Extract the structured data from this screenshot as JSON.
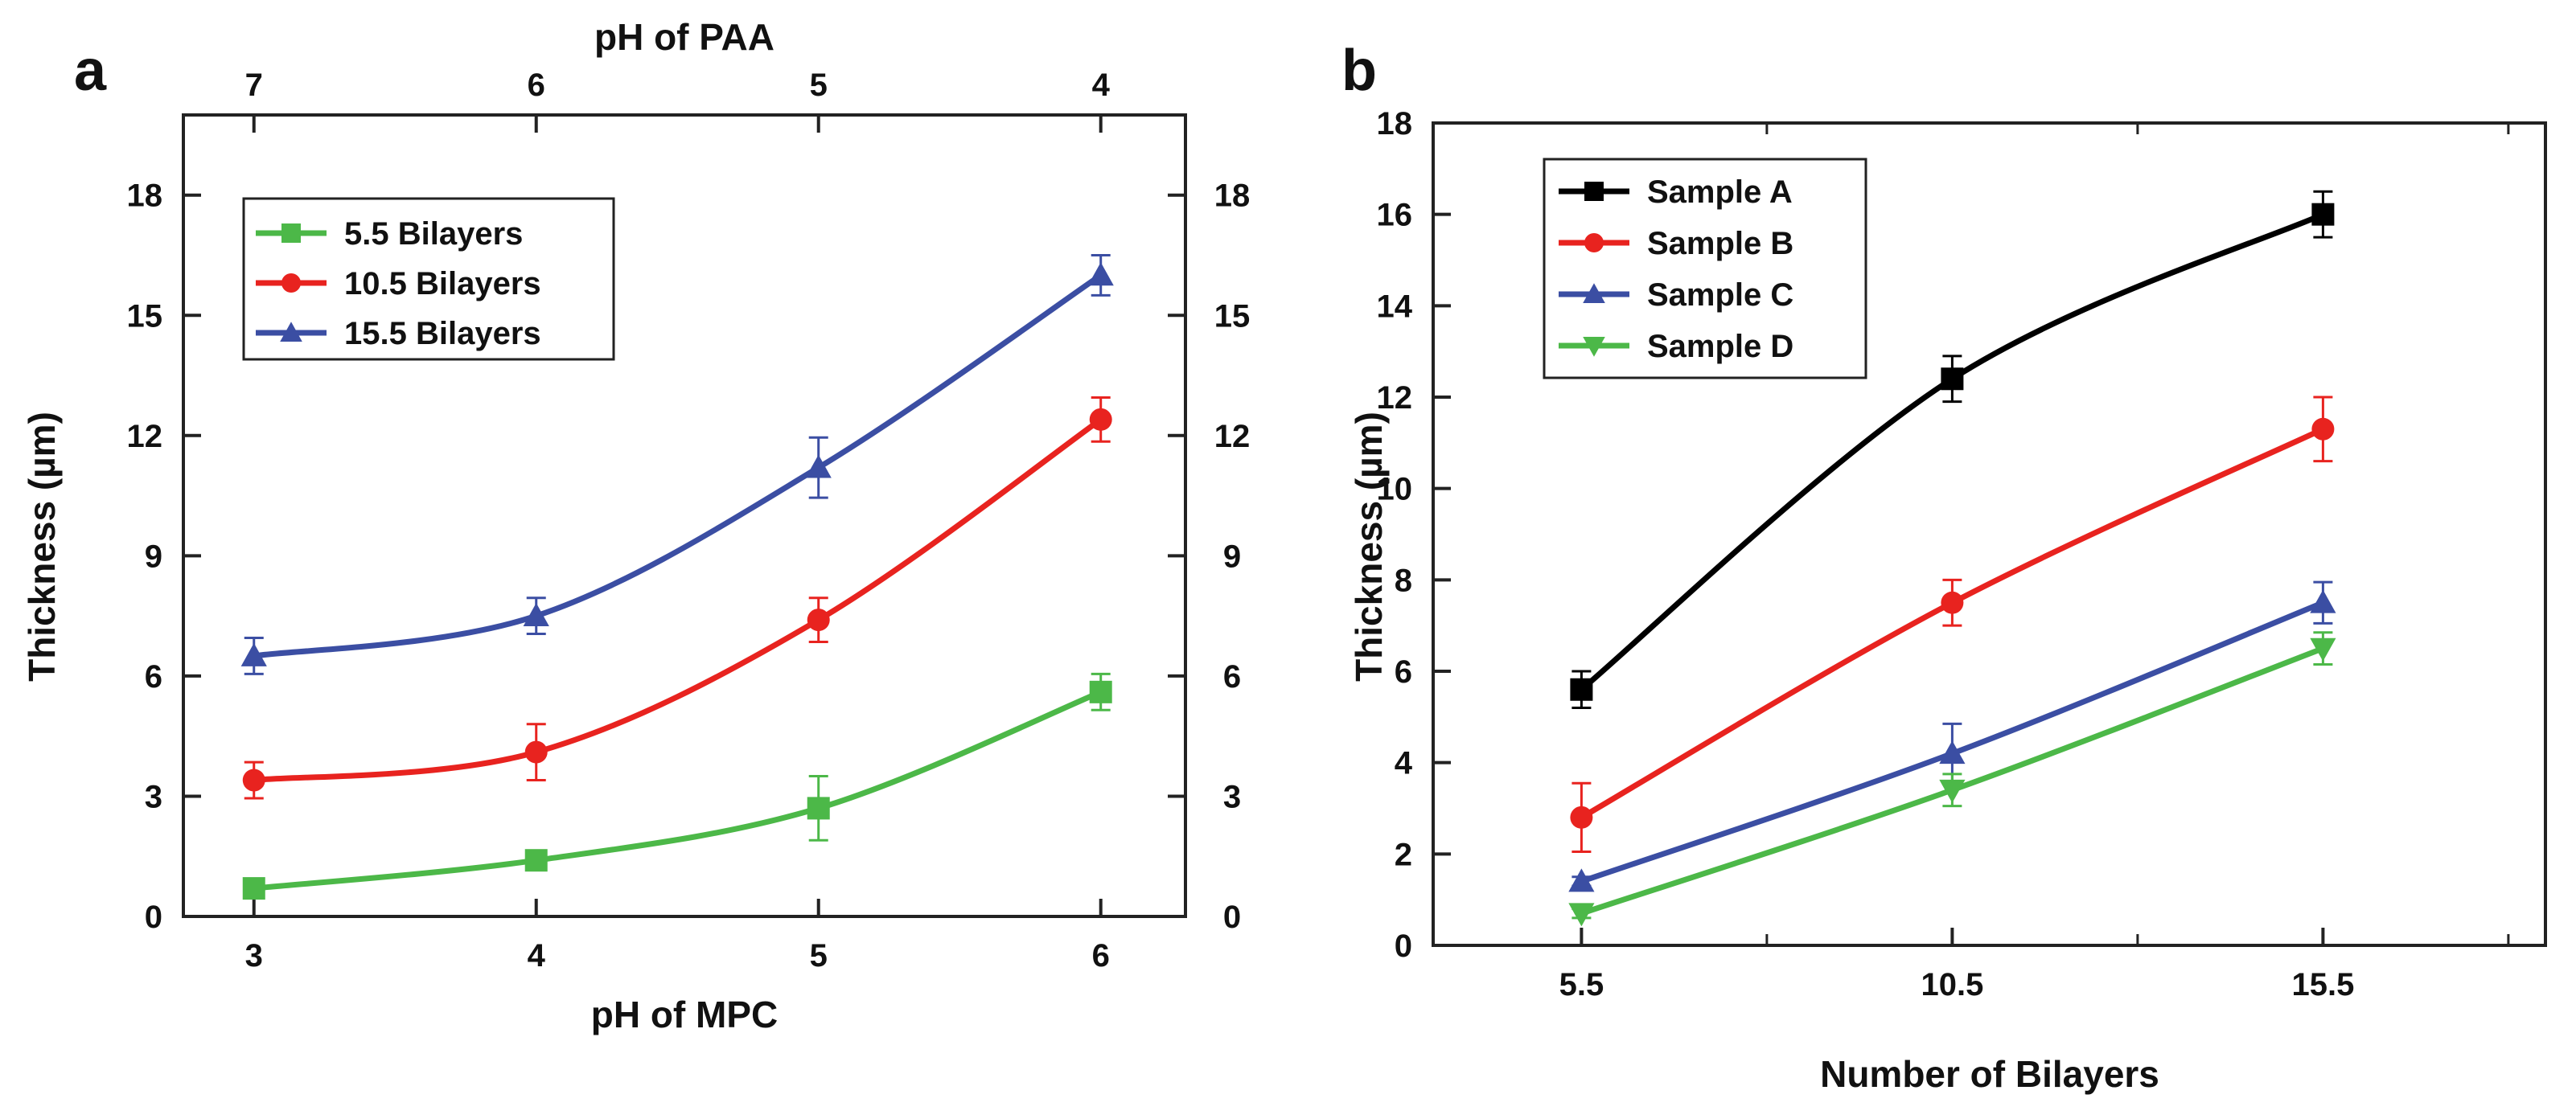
{
  "chart_data": [
    {
      "panel": "a",
      "type": "line",
      "xlabel": "pH of MPC",
      "x2label": "pH of PAA",
      "ylabel": "Thickness (µm)",
      "x": [
        3,
        4,
        5,
        6
      ],
      "x_ticks": [
        "3",
        "4",
        "5",
        "6"
      ],
      "x2_ticks": [
        "7",
        "6",
        "5",
        "4"
      ],
      "xlim": [
        2.75,
        6.3
      ],
      "ylim": [
        0,
        20
      ],
      "y_ticks": [
        0,
        3,
        6,
        9,
        12,
        15,
        18
      ],
      "legend_position": "top-left",
      "series": [
        {
          "name": "5.5 Bilayers",
          "color": "#4cb848",
          "marker": "square",
          "values": [
            0.7,
            1.4,
            2.7,
            5.6
          ],
          "errors": [
            0.1,
            0.15,
            0.8,
            0.45
          ]
        },
        {
          "name": "10.5 Bilayers",
          "color": "#e8231f",
          "marker": "circle",
          "values": [
            3.4,
            4.1,
            7.4,
            12.4
          ],
          "errors": [
            0.45,
            0.7,
            0.55,
            0.55
          ]
        },
        {
          "name": "15.5 Bilayers",
          "color": "#3b4ea3",
          "marker": "triangle-up",
          "values": [
            6.5,
            7.5,
            11.2,
            16.0
          ],
          "errors": [
            0.45,
            0.45,
            0.75,
            0.5
          ]
        }
      ]
    },
    {
      "panel": "b",
      "type": "line",
      "xlabel": "Number of Bilayers",
      "ylabel": "Thickness (µm)",
      "x": [
        5.5,
        10.5,
        15.5
      ],
      "x_ticks": [
        "5.5",
        "10.5",
        "15.5"
      ],
      "xlim": [
        3.5,
        18.5
      ],
      "ylim": [
        0,
        18
      ],
      "y_ticks": [
        0,
        2,
        4,
        6,
        8,
        10,
        12,
        14,
        16,
        18
      ],
      "legend_position": "top-left",
      "series": [
        {
          "name": "Sample A",
          "color": "#000000",
          "marker": "square",
          "values": [
            5.6,
            12.4,
            16.0
          ],
          "errors": [
            0.4,
            0.5,
            0.5
          ]
        },
        {
          "name": "Sample B",
          "color": "#e8231f",
          "marker": "circle",
          "values": [
            2.8,
            7.5,
            11.3
          ],
          "errors": [
            0.75,
            0.5,
            0.7
          ]
        },
        {
          "name": "Sample C",
          "color": "#3b4ea3",
          "marker": "triangle-up",
          "values": [
            1.4,
            4.2,
            7.5
          ],
          "errors": [
            0.1,
            0.65,
            0.45
          ]
        },
        {
          "name": "Sample D",
          "color": "#4cb848",
          "marker": "triangle-down",
          "values": [
            0.7,
            3.4,
            6.5
          ],
          "errors": [
            0.1,
            0.35,
            0.35
          ]
        }
      ]
    }
  ]
}
